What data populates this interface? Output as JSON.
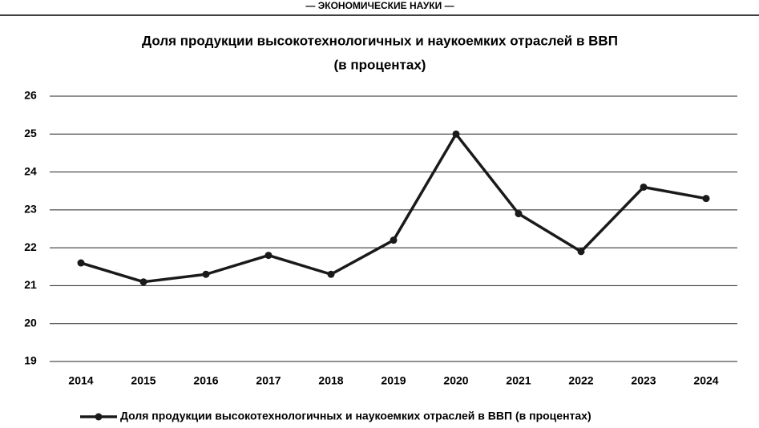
{
  "header": "— ЭКОНОМИЧЕСКИЕ НАУКИ —",
  "chart_data": {
    "type": "line",
    "title": "Доля продукции высокотехнологичных и наукоемких отраслей в ВВП",
    "subtitle": "(в процентах)",
    "categories": [
      "2014",
      "2015",
      "2016",
      "2017",
      "2018",
      "2019",
      "2020",
      "2021",
      "2022",
      "2023",
      "2024"
    ],
    "series": [
      {
        "name": "Доля продукции высокотехнологичных и наукоемких отраслей в ВВП (в процентах)",
        "color": "#1a1a1a",
        "values": [
          21.6,
          21.1,
          21.3,
          21.8,
          21.3,
          22.2,
          25.0,
          22.9,
          21.9,
          23.6,
          23.3
        ]
      }
    ],
    "ylim": [
      19,
      26
    ],
    "yticks": [
      19,
      20,
      21,
      22,
      23,
      24,
      25,
      26
    ],
    "grid": true,
    "legend": "bottom"
  }
}
